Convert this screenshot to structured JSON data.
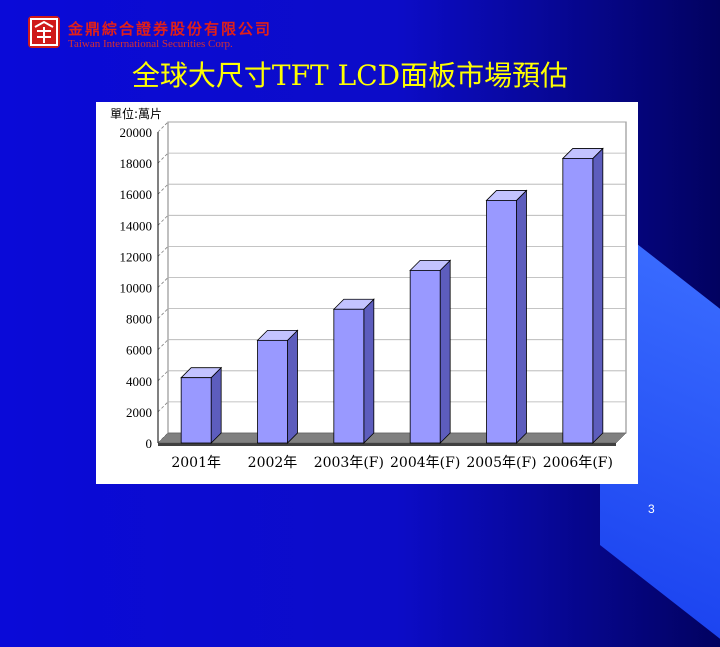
{
  "company": {
    "name_cn": "金鼎綜合證券股份有限公司",
    "name_en": "Taiwan International Securities Corp."
  },
  "slide": {
    "title": "全球大尺寸TFT LCD面板市場預估",
    "page_number": "3"
  },
  "colors": {
    "background": "#0a0ad8",
    "title": "#ffff00",
    "bar_front": "#9999ff",
    "bar_side": "#5d5dbd",
    "bar_top": "#c3c3ff",
    "floor": "#808080"
  },
  "chart_data": {
    "type": "bar",
    "unit_label": "單位:萬片",
    "categories": [
      "2001年",
      "2002年",
      "2003年(F)",
      "2004年(F)",
      "2005年(F)",
      "2006年(F)"
    ],
    "values": [
      4200,
      6600,
      8600,
      11100,
      15600,
      18300
    ],
    "yticks": [
      0,
      2000,
      4000,
      6000,
      8000,
      10000,
      12000,
      14000,
      16000,
      18000,
      20000
    ],
    "ylim": [
      0,
      20000
    ],
    "grid": true,
    "three_d": true
  }
}
